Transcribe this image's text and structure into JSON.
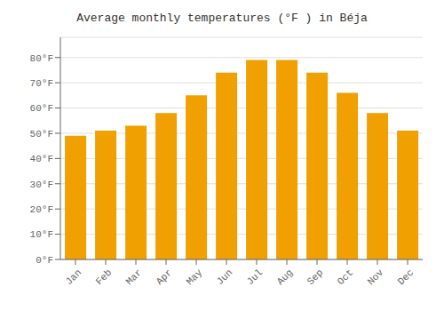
{
  "chart_data": {
    "type": "bar",
    "title": "Average monthly temperatures (°F ) in Béja",
    "categories": [
      "Jan",
      "Feb",
      "Mar",
      "Apr",
      "May",
      "Jun",
      "Jul",
      "Aug",
      "Sep",
      "Oct",
      "Nov",
      "Dec"
    ],
    "values": [
      49,
      51,
      53,
      58,
      65,
      74,
      79,
      79,
      74,
      66,
      58,
      51
    ],
    "color": "#F0A000",
    "ylim": [
      0,
      88
    ],
    "yticks": [
      {
        "value": 0,
        "label": "0°F"
      },
      {
        "value": 10,
        "label": "10°F"
      },
      {
        "value": 20,
        "label": "20°F"
      },
      {
        "value": 30,
        "label": "30°F"
      },
      {
        "value": 40,
        "label": "40°F"
      },
      {
        "value": 50,
        "label": "50°F"
      },
      {
        "value": 60,
        "label": "60°F"
      },
      {
        "value": 70,
        "label": "70°F"
      },
      {
        "value": 80,
        "label": "80°F"
      }
    ],
    "grid": true
  }
}
